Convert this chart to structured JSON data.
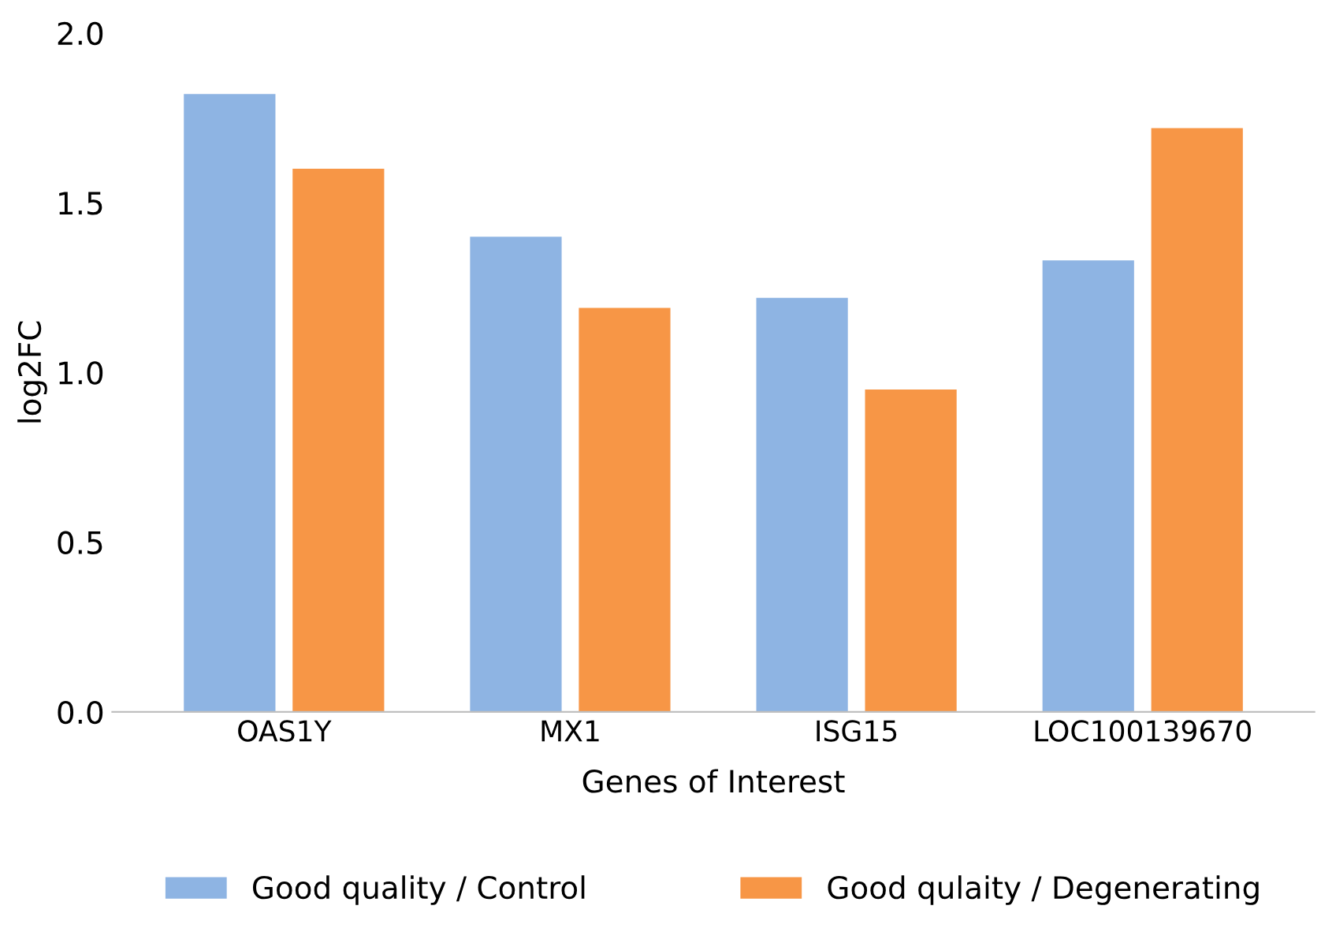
{
  "chart_data": {
    "type": "bar",
    "xlabel": "Genes of Interest",
    "ylabel": "log2FC",
    "categories": [
      "OAS1Y",
      "MX1",
      "ISG15",
      "LOC100139670"
    ],
    "series": [
      {
        "name": "Good quality / Control",
        "color": "#8eb4e3",
        "values": [
          1.82,
          1.4,
          1.22,
          1.33
        ]
      },
      {
        "name": "Good qulaity / Degenerating",
        "color": "#f79646",
        "values": [
          1.6,
          1.19,
          0.95,
          1.72
        ]
      }
    ],
    "ylim": [
      0,
      2
    ],
    "yticks": [
      {
        "value": 0,
        "label": "0.0"
      },
      {
        "value": 0.5,
        "label": "0.5"
      },
      {
        "value": 1,
        "label": "1.0"
      },
      {
        "value": 1.5,
        "label": "1.5"
      },
      {
        "value": 2,
        "label": "2.0"
      }
    ],
    "grid": false,
    "legend": "bottom"
  }
}
